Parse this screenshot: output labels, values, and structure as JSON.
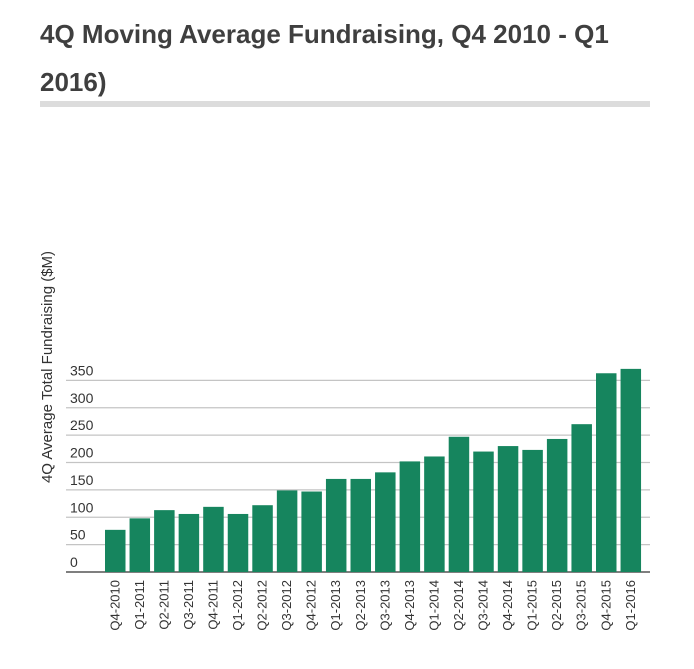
{
  "chart_data": {
    "type": "bar",
    "title": "4Q Moving Average Fundraising, Q4 2010 - Q1 2016)",
    "xlabel": "",
    "ylabel": "4Q Average Total Fundraising ($M)",
    "ylim": [
      0,
      400
    ],
    "yticks": [
      0,
      50,
      100,
      150,
      200,
      250,
      300,
      350
    ],
    "grid": true,
    "bar_color": "#16855e",
    "categories": [
      "Q4-2010",
      "Q1-2011",
      "Q2-2011",
      "Q3-2011",
      "Q4-2011",
      "Q1-2012",
      "Q2-2012",
      "Q3-2012",
      "Q4-2012",
      "Q1-2013",
      "Q2-2013",
      "Q3-2013",
      "Q4-2013",
      "Q1-2014",
      "Q2-2014",
      "Q3-2014",
      "Q4-2014",
      "Q1-2015",
      "Q2-2015",
      "Q3-2015",
      "Q4-2015",
      "Q1-2016"
    ],
    "values": [
      77,
      98,
      113,
      106,
      119,
      106,
      122,
      149,
      147,
      170,
      170,
      182,
      202,
      211,
      247,
      220,
      230,
      223,
      243,
      270,
      363,
      371
    ]
  }
}
